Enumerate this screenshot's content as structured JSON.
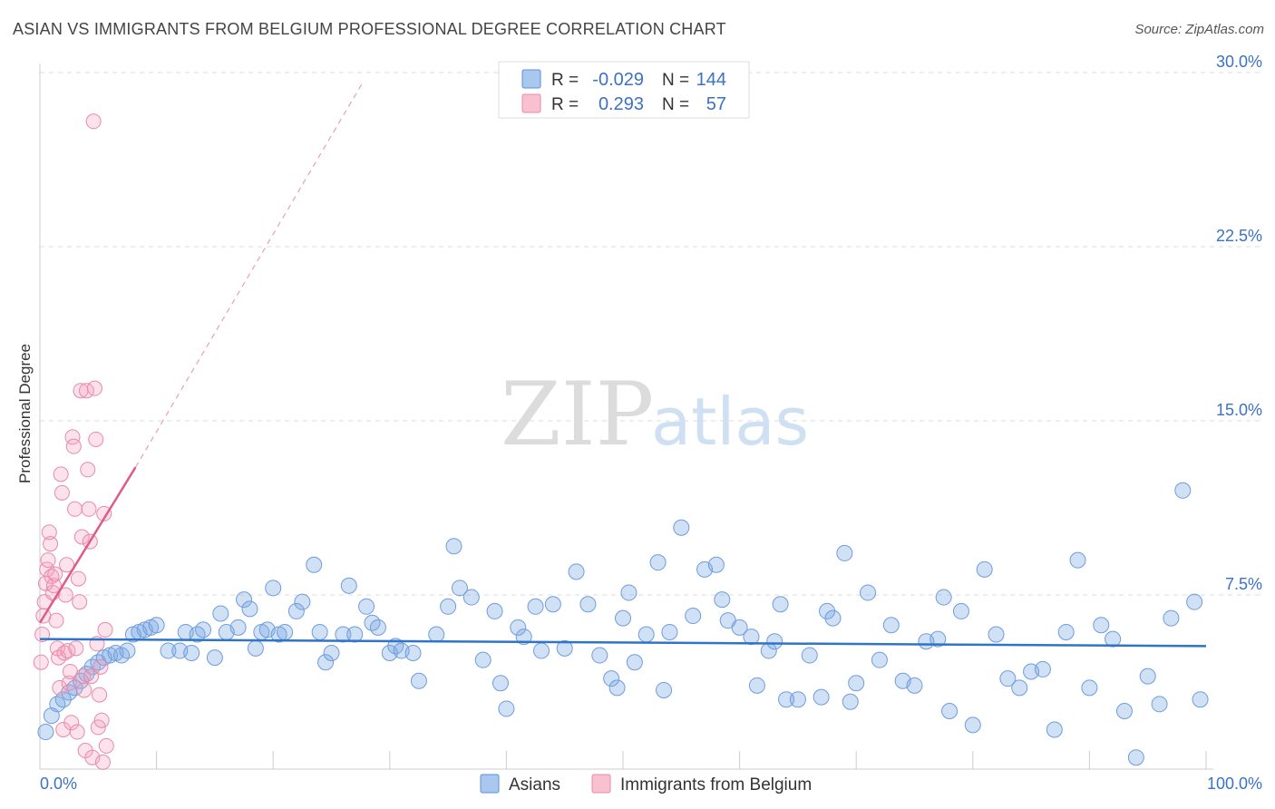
{
  "title": "ASIAN VS IMMIGRANTS FROM BELGIUM PROFESSIONAL DEGREE CORRELATION CHART",
  "source": "Source: ZipAtlas.com",
  "watermark": {
    "zip": "ZIP",
    "atlas": "atlas"
  },
  "legend": {
    "r_label": "R =",
    "n_label": "N =",
    "rows": [
      {
        "r": "-0.029",
        "n": "144",
        "color": "#a9c8f0",
        "stroke": "#5b8fd6"
      },
      {
        "r": "0.293",
        "n": "57",
        "color": "#f9c0d2",
        "stroke": "#e98aa8"
      }
    ]
  },
  "bottom_legend": [
    {
      "label": "Asians",
      "color": "#a9c8f0",
      "stroke": "#5b8fd6"
    },
    {
      "label": "Immigrants from Belgium",
      "color": "#f9c0d2",
      "stroke": "#e98aa8"
    }
  ],
  "colors": {
    "asian_fill": "rgba(120,165,225,0.35)",
    "asian_stroke": "#6f9ddc",
    "belgium_fill": "rgba(245,160,190,0.30)",
    "belgium_stroke": "#e98aa8",
    "asian_trend": "#2f74c8",
    "belgium_trend": "#e05a8a",
    "grid": "#dddddd"
  },
  "chart_data": {
    "type": "scatter",
    "title": "ASIAN VS IMMIGRANTS FROM BELGIUM PROFESSIONAL DEGREE CORRELATION CHART",
    "xlabel": "",
    "ylabel": "Professional Degree",
    "xlim": [
      0,
      100
    ],
    "ylim": [
      0,
      30
    ],
    "x_tick_labels": [
      "0.0%",
      "100.0%"
    ],
    "y_ticks": [
      7.5,
      15.0,
      22.5,
      30.0
    ],
    "y_tick_labels": [
      "7.5%",
      "15.0%",
      "22.5%",
      "30.0%"
    ],
    "grid": true,
    "series": [
      {
        "name": "Asians",
        "r": -0.029,
        "n": 144,
        "trend": {
          "x": [
            0,
            100
          ],
          "y": [
            5.6,
            5.3
          ]
        },
        "points": [
          [
            0.5,
            1.6
          ],
          [
            1.0,
            2.3
          ],
          [
            1.5,
            2.8
          ],
          [
            2.0,
            3.0
          ],
          [
            2.5,
            3.3
          ],
          [
            3.0,
            3.5
          ],
          [
            3.5,
            3.8
          ],
          [
            4.0,
            4.1
          ],
          [
            4.5,
            4.4
          ],
          [
            5.0,
            4.6
          ],
          [
            5.5,
            4.8
          ],
          [
            6.0,
            4.9
          ],
          [
            6.5,
            5.0
          ],
          [
            7.0,
            4.9
          ],
          [
            7.5,
            5.1
          ],
          [
            8.0,
            5.8
          ],
          [
            8.5,
            5.9
          ],
          [
            9.0,
            6.0
          ],
          [
            9.5,
            6.1
          ],
          [
            10.0,
            6.2
          ],
          [
            11.0,
            5.1
          ],
          [
            12.0,
            5.1
          ],
          [
            12.5,
            5.9
          ],
          [
            13.0,
            5.0
          ],
          [
            13.5,
            5.8
          ],
          [
            14.0,
            6.0
          ],
          [
            15.0,
            4.8
          ],
          [
            15.5,
            6.7
          ],
          [
            16.0,
            5.9
          ],
          [
            17.0,
            6.1
          ],
          [
            17.5,
            7.3
          ],
          [
            18.0,
            6.9
          ],
          [
            18.5,
            5.2
          ],
          [
            19.0,
            5.9
          ],
          [
            19.5,
            6.0
          ],
          [
            20.0,
            7.8
          ],
          [
            20.5,
            5.8
          ],
          [
            21.0,
            5.9
          ],
          [
            22.0,
            6.8
          ],
          [
            22.5,
            7.2
          ],
          [
            23.5,
            8.8
          ],
          [
            24.0,
            5.9
          ],
          [
            24.5,
            4.6
          ],
          [
            25.0,
            5.0
          ],
          [
            26.0,
            5.8
          ],
          [
            26.5,
            7.9
          ],
          [
            27.0,
            5.8
          ],
          [
            28.0,
            7.0
          ],
          [
            28.5,
            6.3
          ],
          [
            29.0,
            6.1
          ],
          [
            30.0,
            5.0
          ],
          [
            30.5,
            5.3
          ],
          [
            31.0,
            5.1
          ],
          [
            32.0,
            5.0
          ],
          [
            32.5,
            3.8
          ],
          [
            34.0,
            5.8
          ],
          [
            35.0,
            7.0
          ],
          [
            35.5,
            9.6
          ],
          [
            36.0,
            7.8
          ],
          [
            37.0,
            7.4
          ],
          [
            38.0,
            4.7
          ],
          [
            39.0,
            6.8
          ],
          [
            39.5,
            3.7
          ],
          [
            40.0,
            2.6
          ],
          [
            41.0,
            6.1
          ],
          [
            41.5,
            5.7
          ],
          [
            42.5,
            7.0
          ],
          [
            43.0,
            5.1
          ],
          [
            44.0,
            7.1
          ],
          [
            45.0,
            5.2
          ],
          [
            46.0,
            8.5
          ],
          [
            47.0,
            7.1
          ],
          [
            48.0,
            4.9
          ],
          [
            49.0,
            3.9
          ],
          [
            49.5,
            3.5
          ],
          [
            50.0,
            6.5
          ],
          [
            50.5,
            7.6
          ],
          [
            51.0,
            4.6
          ],
          [
            52.0,
            5.8
          ],
          [
            53.0,
            8.9
          ],
          [
            53.5,
            3.4
          ],
          [
            54.0,
            5.9
          ],
          [
            55.0,
            10.4
          ],
          [
            56.0,
            6.6
          ],
          [
            57.0,
            8.6
          ],
          [
            58.0,
            8.8
          ],
          [
            58.5,
            7.3
          ],
          [
            59.0,
            6.4
          ],
          [
            60.0,
            6.1
          ],
          [
            61.0,
            5.7
          ],
          [
            61.5,
            3.6
          ],
          [
            62.5,
            5.1
          ],
          [
            63.0,
            5.5
          ],
          [
            63.5,
            7.1
          ],
          [
            64.0,
            3.0
          ],
          [
            65.0,
            3.0
          ],
          [
            66.0,
            4.9
          ],
          [
            67.0,
            3.1
          ],
          [
            67.5,
            6.8
          ],
          [
            68.0,
            6.5
          ],
          [
            69.0,
            9.3
          ],
          [
            69.5,
            2.9
          ],
          [
            70.0,
            3.7
          ],
          [
            71.0,
            7.6
          ],
          [
            72.0,
            4.7
          ],
          [
            73.0,
            6.2
          ],
          [
            74.0,
            3.8
          ],
          [
            75.0,
            3.6
          ],
          [
            76.0,
            5.5
          ],
          [
            77.0,
            5.6
          ],
          [
            77.5,
            7.4
          ],
          [
            78.0,
            2.5
          ],
          [
            79.0,
            6.8
          ],
          [
            80.0,
            1.9
          ],
          [
            81.0,
            8.6
          ],
          [
            82.0,
            5.8
          ],
          [
            83.0,
            3.9
          ],
          [
            84.0,
            3.5
          ],
          [
            85.0,
            4.2
          ],
          [
            86.0,
            4.3
          ],
          [
            87.0,
            1.7
          ],
          [
            88.0,
            5.9
          ],
          [
            89.0,
            9.0
          ],
          [
            90.0,
            3.5
          ],
          [
            91.0,
            6.2
          ],
          [
            92.0,
            5.6
          ],
          [
            93.0,
            2.5
          ],
          [
            94.0,
            0.5
          ],
          [
            95.0,
            4.0
          ],
          [
            96.0,
            2.8
          ],
          [
            97.0,
            6.5
          ],
          [
            98.0,
            12.0
          ],
          [
            99.0,
            7.2
          ],
          [
            99.5,
            3.0
          ]
        ]
      },
      {
        "name": "Immigrants from Belgium",
        "r": 0.293,
        "n": 57,
        "trend": {
          "x": [
            0,
            8.2
          ],
          "y": [
            6.3,
            13.0
          ]
        },
        "trend_extended": {
          "x": [
            8.2,
            27.6
          ],
          "y": [
            13.0,
            29.5
          ]
        },
        "points": [
          [
            0.1,
            4.6
          ],
          [
            0.2,
            5.8
          ],
          [
            0.3,
            6.6
          ],
          [
            0.4,
            7.2
          ],
          [
            0.5,
            8.0
          ],
          [
            0.6,
            8.6
          ],
          [
            0.7,
            9.0
          ],
          [
            0.8,
            10.2
          ],
          [
            0.9,
            9.7
          ],
          [
            1.0,
            8.3
          ],
          [
            1.1,
            7.6
          ],
          [
            1.2,
            7.9
          ],
          [
            1.3,
            8.4
          ],
          [
            1.4,
            6.4
          ],
          [
            1.5,
            5.2
          ],
          [
            1.6,
            4.8
          ],
          [
            1.7,
            3.5
          ],
          [
            1.8,
            12.7
          ],
          [
            1.9,
            11.9
          ],
          [
            2.0,
            1.7
          ],
          [
            2.1,
            5.0
          ],
          [
            2.2,
            7.5
          ],
          [
            2.3,
            8.8
          ],
          [
            2.4,
            5.1
          ],
          [
            2.5,
            3.7
          ],
          [
            2.6,
            4.2
          ],
          [
            2.7,
            2.0
          ],
          [
            2.8,
            14.3
          ],
          [
            2.9,
            13.9
          ],
          [
            3.0,
            11.2
          ],
          [
            3.1,
            5.2
          ],
          [
            3.2,
            1.6
          ],
          [
            3.3,
            8.2
          ],
          [
            3.4,
            7.2
          ],
          [
            3.5,
            16.3
          ],
          [
            3.6,
            10.0
          ],
          [
            3.7,
            4.0
          ],
          [
            3.8,
            3.4
          ],
          [
            3.9,
            0.8
          ],
          [
            4.0,
            16.3
          ],
          [
            4.1,
            12.9
          ],
          [
            4.2,
            11.2
          ],
          [
            4.3,
            9.8
          ],
          [
            4.4,
            4.0
          ],
          [
            4.5,
            0.5
          ],
          [
            4.6,
            27.9
          ],
          [
            4.7,
            16.4
          ],
          [
            4.8,
            14.2
          ],
          [
            4.9,
            5.4
          ],
          [
            5.0,
            1.8
          ],
          [
            5.1,
            3.2
          ],
          [
            5.2,
            4.4
          ],
          [
            5.3,
            2.1
          ],
          [
            5.4,
            0.3
          ],
          [
            5.5,
            11.0
          ],
          [
            5.6,
            6.0
          ],
          [
            5.7,
            1.0
          ]
        ]
      }
    ]
  }
}
